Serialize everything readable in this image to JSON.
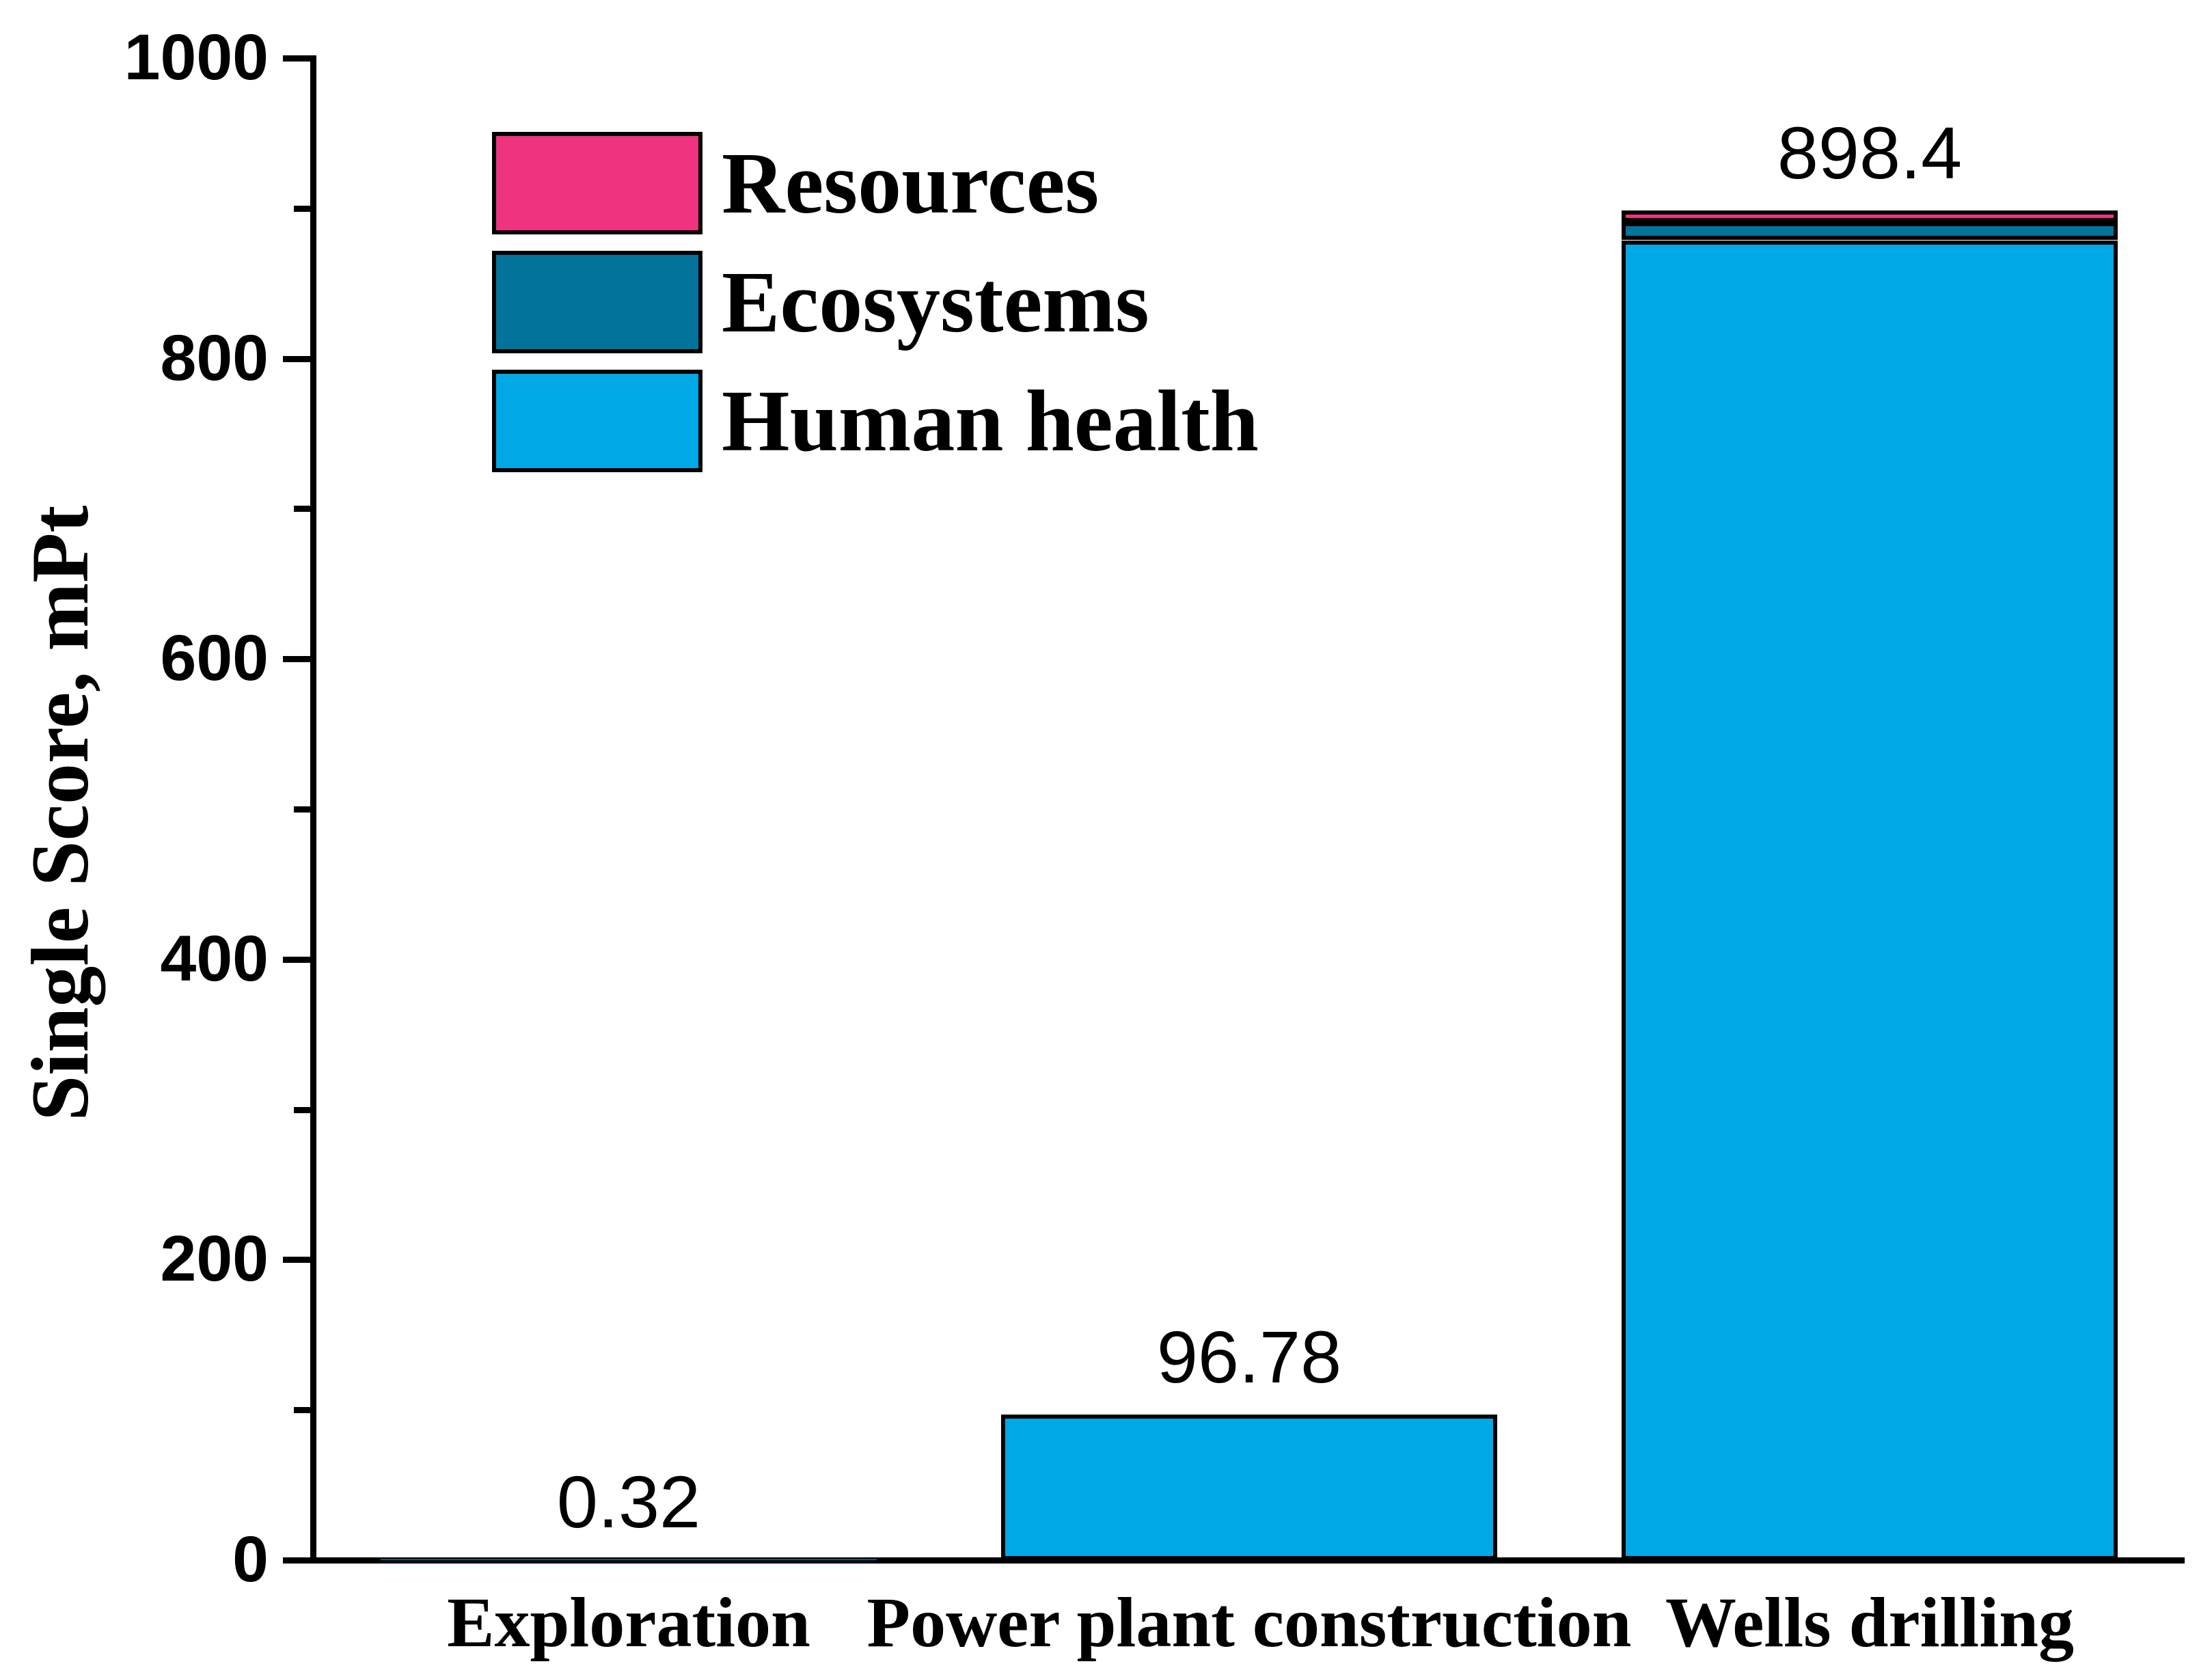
{
  "chart_data": {
    "type": "bar",
    "stacked": true,
    "title": "",
    "xlabel": "",
    "ylabel": "Single Score, mPt",
    "ylim": [
      0,
      1000
    ],
    "ytick_major_step": 200,
    "ytick_minor_step": 100,
    "ytick_labels": [
      "0",
      "200",
      "400",
      "600",
      "800",
      "1000"
    ],
    "grid": false,
    "background_color": "#FFFFFF",
    "axis_color": "#000000",
    "bar_border_color": "#000000",
    "legend_position": "top-left",
    "legend_order_top_to_bottom": [
      "Resources",
      "Ecosystems",
      "Human health"
    ],
    "categories": [
      "Exploration",
      "Power plant construction",
      "Wells drilling"
    ],
    "series": [
      {
        "name": "Human health",
        "color": "#00A9E6",
        "values": [
          0.32,
          96.78,
          878.7
        ]
      },
      {
        "name": "Ecosystems",
        "color": "#02749B",
        "values": [
          0,
          0,
          12.0
        ]
      },
      {
        "name": "Resources",
        "color": "#EF337E",
        "values": [
          0,
          0,
          7.7
        ]
      }
    ],
    "bar_totals": [
      0.32,
      96.78,
      898.4
    ],
    "bar_total_labels": [
      "0.32",
      "96.78",
      "898.4"
    ]
  }
}
